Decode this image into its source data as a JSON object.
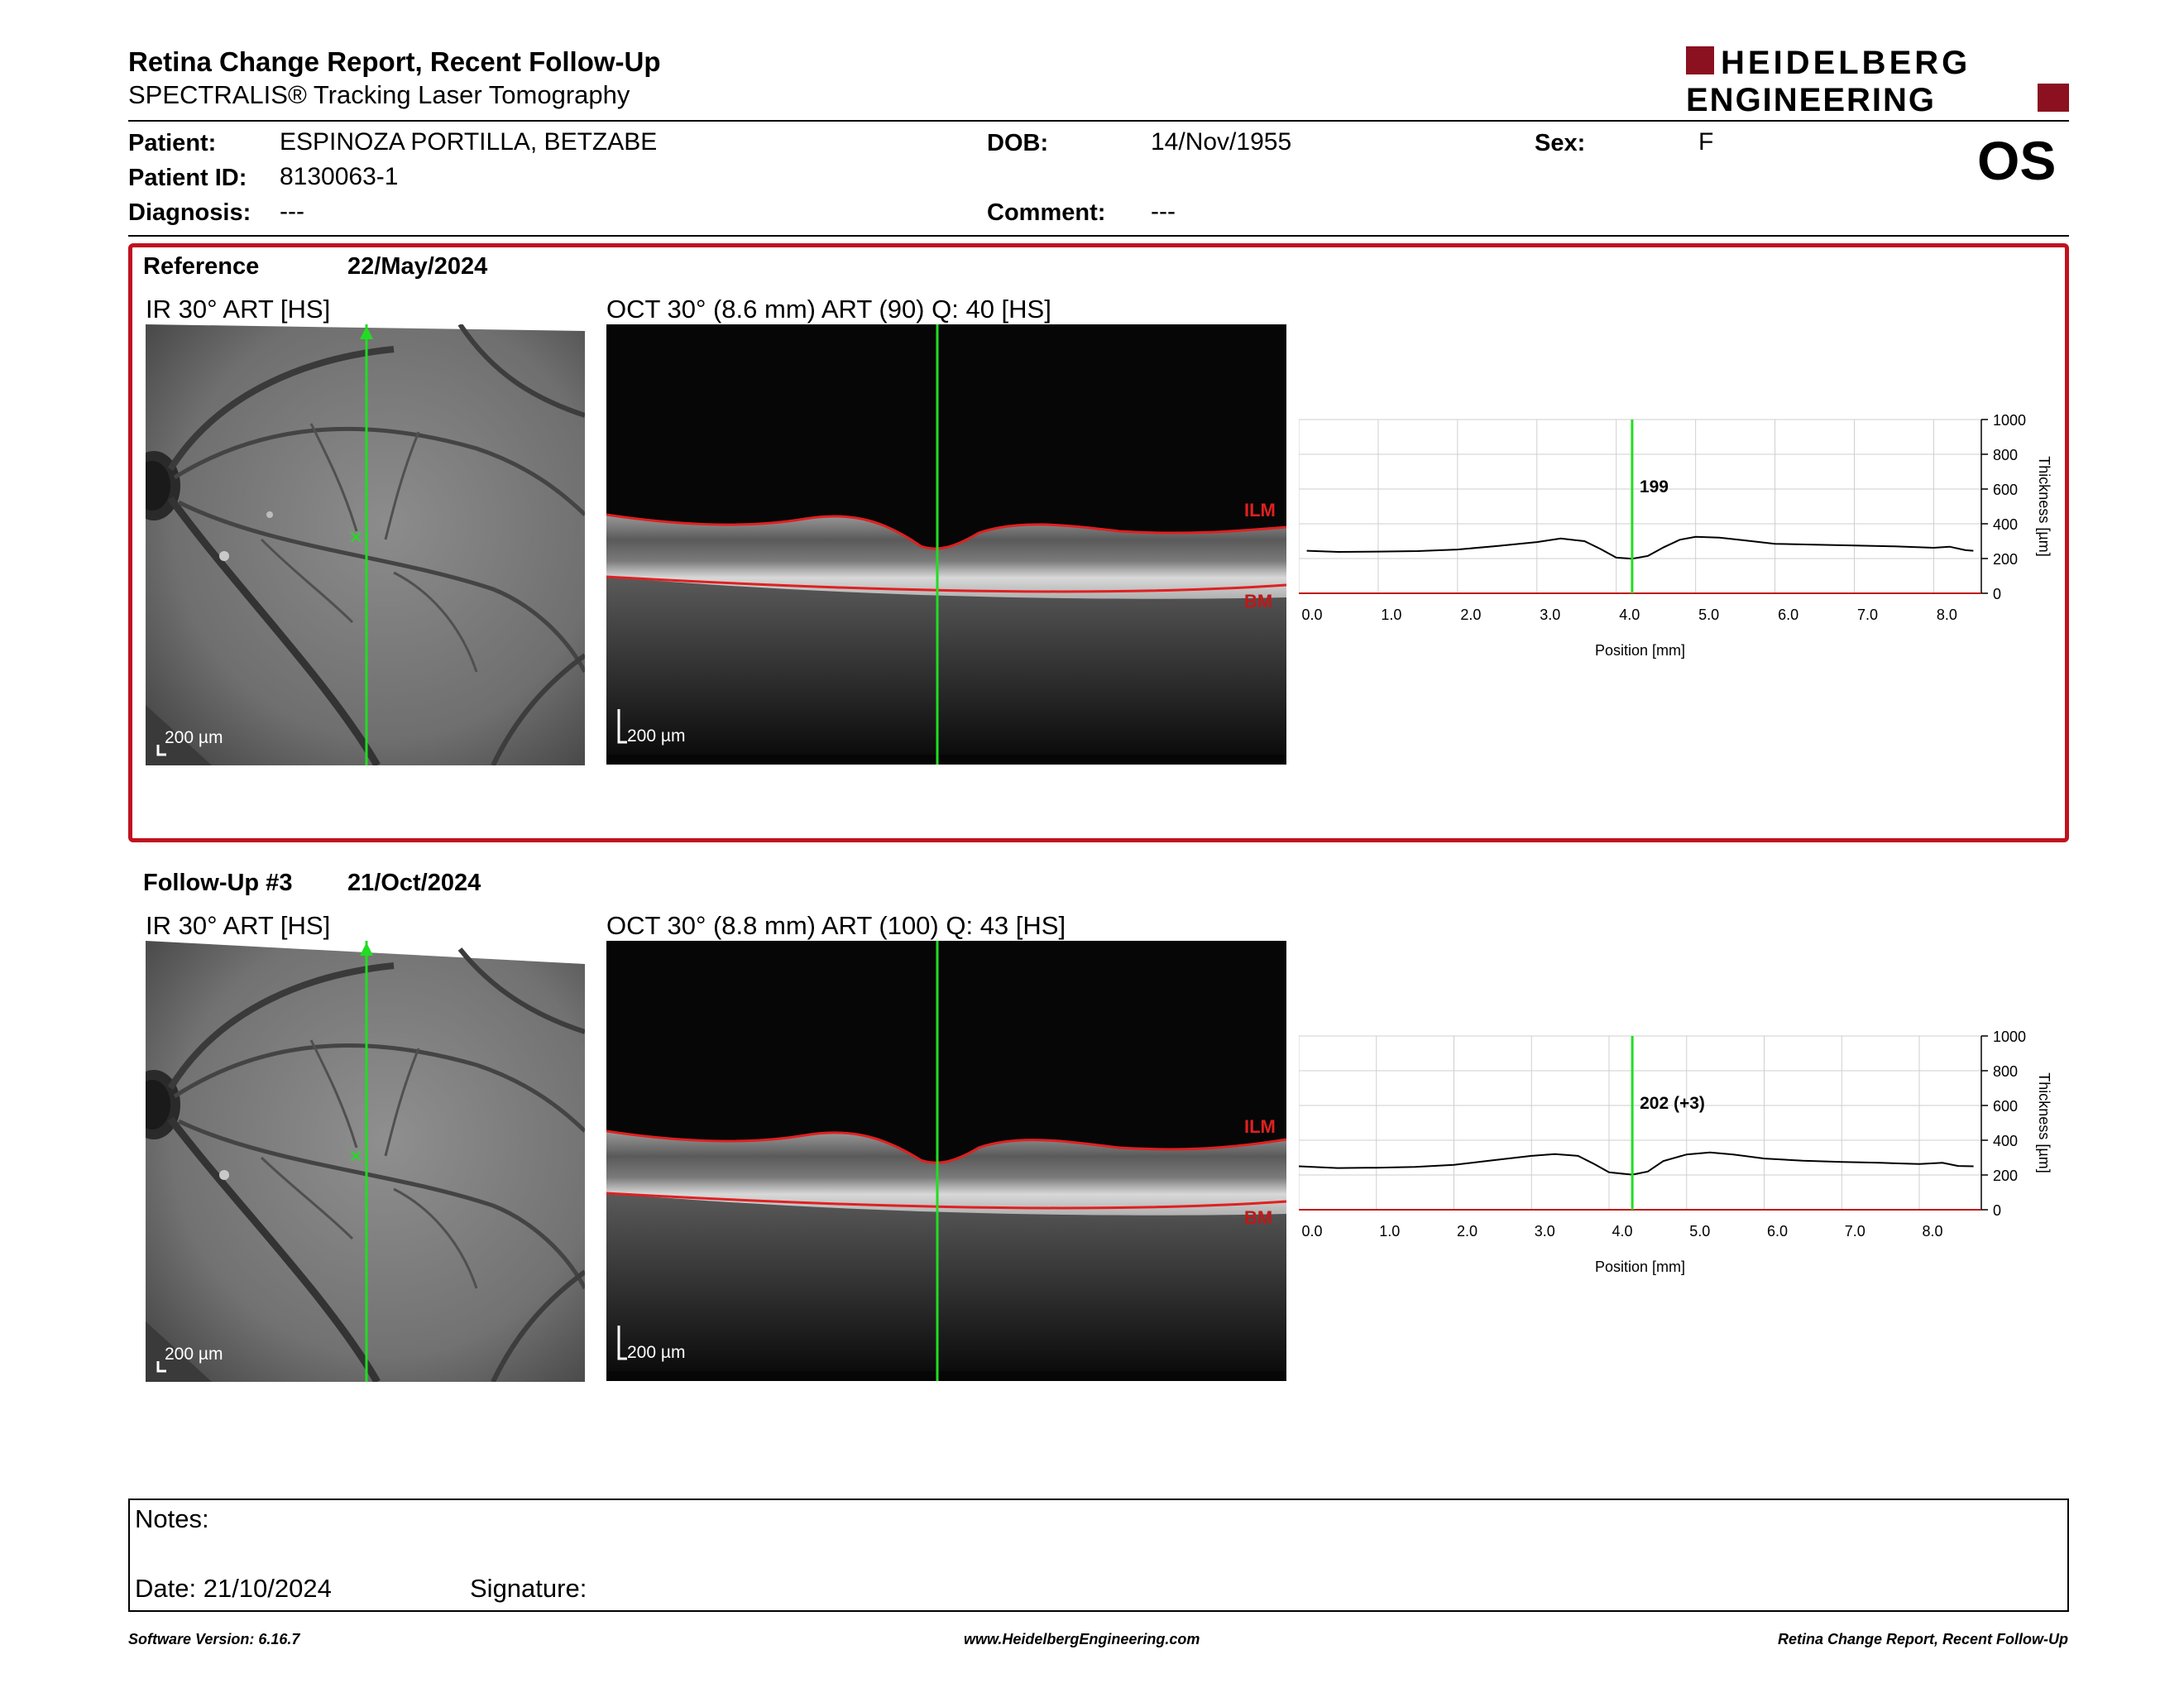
{
  "header": {
    "title": "Retina Change Report, Recent Follow-Up",
    "subtitle": "SPECTRALIS® Tracking Laser Tomography",
    "logo_line1": "HEIDELBERG",
    "logo_line2": "ENGINEERING",
    "eye": "OS"
  },
  "patient": {
    "patient_label": "Patient:",
    "patient_value": "ESPINOZA PORTILLA, BETZABE",
    "id_label": "Patient ID:",
    "id_value": "8130063-1",
    "diagnosis_label": "Diagnosis:",
    "diagnosis_value": "---",
    "dob_label": "DOB:",
    "dob_value": "14/Nov/1955",
    "comment_label": "Comment:",
    "comment_value": "---",
    "sex_label": "Sex:",
    "sex_value": "F"
  },
  "reference": {
    "title": "Reference",
    "date": "22/May/2024",
    "ir_caption": "IR 30° ART [HS]",
    "oct_caption": "OCT 30° (8.6 mm) ART (90) Q: 40 [HS]",
    "ir_scale": "200 µm",
    "oct_scale": "200 µm",
    "ilm_label": "ILM",
    "bm_label": "BM"
  },
  "followup": {
    "title": "Follow-Up #3",
    "date": "21/Oct/2024",
    "ir_caption": "IR 30° ART [HS]",
    "oct_caption": "OCT 30° (8.8 mm) ART (100) Q: 43 [HS]",
    "ir_scale": "200 µm",
    "oct_scale": "200 µm",
    "ilm_label": "ILM",
    "bm_label": "BM"
  },
  "chart_data": [
    {
      "type": "line",
      "xlabel": "Position [mm]",
      "ylabel": "Thickness [µm]",
      "xlim": [
        0,
        8.6
      ],
      "ylim": [
        0,
        1000
      ],
      "x_ticks": [
        "0.0",
        "1.0",
        "2.0",
        "3.0",
        "4.0",
        "5.0",
        "6.0",
        "7.0",
        "8.0"
      ],
      "y_ticks": [
        "0",
        "200",
        "400",
        "600",
        "800",
        "1000"
      ],
      "grid": true,
      "cursor_x": 4.2,
      "cursor_label": "199",
      "series": [
        {
          "x": [
            0.1,
            0.5,
            1.0,
            1.5,
            2.0,
            2.5,
            3.0,
            3.3,
            3.6,
            3.8,
            4.0,
            4.2,
            4.4,
            4.6,
            4.8,
            5.0,
            5.3,
            5.6,
            6.0,
            6.5,
            7.0,
            7.5,
            8.0,
            8.2,
            8.4,
            8.5
          ],
          "y": [
            245,
            238,
            240,
            243,
            252,
            272,
            295,
            315,
            300,
            255,
            205,
            199,
            215,
            265,
            308,
            325,
            320,
            305,
            285,
            280,
            275,
            270,
            262,
            268,
            248,
            245
          ]
        }
      ]
    },
    {
      "type": "line",
      "xlabel": "Position [mm]",
      "ylabel": "Thickness [µm]",
      "xlim": [
        0,
        8.8
      ],
      "ylim": [
        0,
        1000
      ],
      "x_ticks": [
        "0.0",
        "1.0",
        "2.0",
        "3.0",
        "4.0",
        "5.0",
        "6.0",
        "7.0",
        "8.0"
      ],
      "y_ticks": [
        "0",
        "200",
        "400",
        "600",
        "800",
        "1000"
      ],
      "grid": true,
      "cursor_x": 4.3,
      "cursor_label": "202 (+3)",
      "series": [
        {
          "x": [
            0.0,
            0.5,
            1.0,
            1.5,
            2.0,
            2.5,
            3.0,
            3.3,
            3.6,
            3.8,
            4.0,
            4.3,
            4.5,
            4.7,
            5.0,
            5.3,
            5.6,
            6.0,
            6.5,
            7.0,
            7.5,
            8.0,
            8.3,
            8.5,
            8.7
          ],
          "y": [
            250,
            240,
            242,
            246,
            258,
            285,
            310,
            320,
            310,
            265,
            215,
            202,
            220,
            280,
            318,
            330,
            318,
            295,
            282,
            275,
            270,
            263,
            270,
            252,
            250
          ]
        }
      ]
    }
  ],
  "notes": {
    "notes_label": "Notes:",
    "date_label": "Date: 21/10/2024",
    "signature_label": "Signature:"
  },
  "footer": {
    "left": "Software Version: 6.16.7",
    "center": "www.HeidelbergEngineering.com",
    "right": "Retina Change Report, Recent Follow-Up"
  },
  "colors": {
    "accent_red": "#c0121f",
    "cursor_green": "#22dd22",
    "layer_red": "#e02020"
  }
}
